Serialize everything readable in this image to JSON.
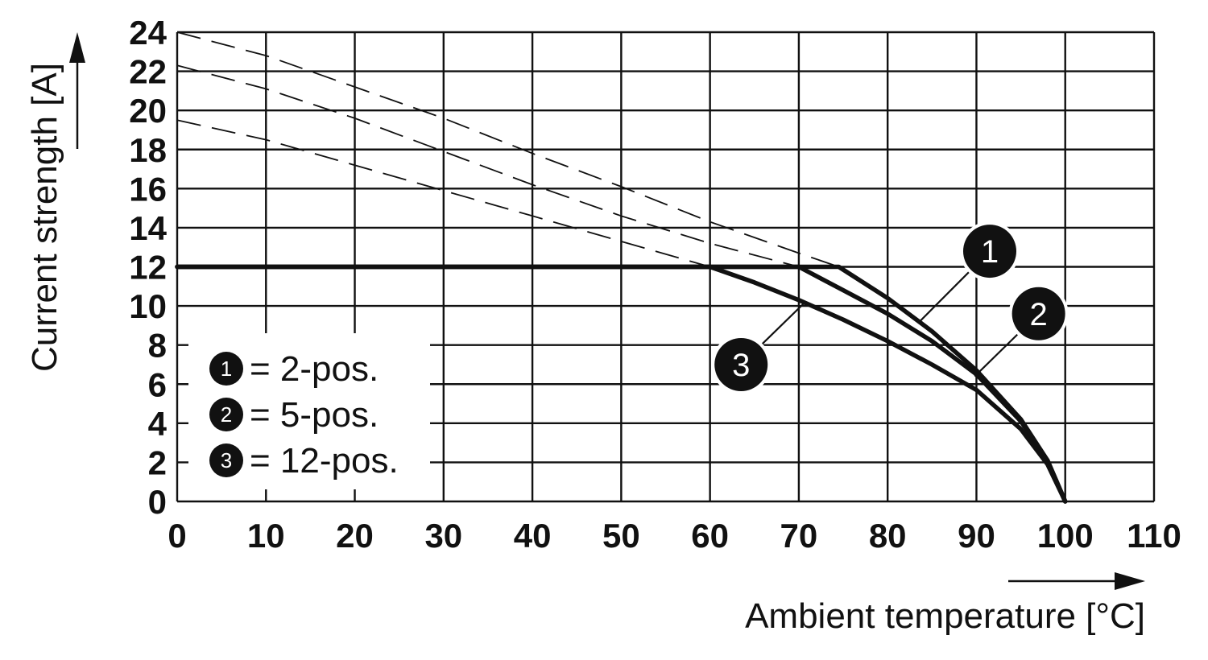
{
  "chart_data": {
    "type": "line",
    "xlabel": "Ambient temperature [°C]",
    "ylabel": "Current strength [A]",
    "xlim": [
      0,
      110
    ],
    "ylim": [
      0,
      24
    ],
    "x_ticks": [
      "0",
      "10",
      "20",
      "30",
      "40",
      "50",
      "60",
      "70",
      "80",
      "90",
      "100",
      "110"
    ],
    "y_ticks": [
      "0",
      "2",
      "4",
      "6",
      "8",
      "10",
      "12",
      "14",
      "16",
      "18",
      "20",
      "22",
      "24"
    ],
    "grid": true,
    "legend_position": "bottom-left",
    "legend": [
      {
        "marker": "1",
        "text": "= 2-pos."
      },
      {
        "marker": "2",
        "text": "= 5-pos."
      },
      {
        "marker": "3",
        "text": "= 12-pos."
      }
    ],
    "limit_current": 12,
    "series": [
      {
        "marker": "1",
        "solid": [
          [
            0,
            12
          ],
          [
            74.5,
            12
          ],
          [
            80,
            10.4
          ],
          [
            85,
            8.7
          ],
          [
            90,
            6.7
          ],
          [
            95,
            4.2
          ],
          [
            98,
            2.1
          ],
          [
            100,
            0
          ]
        ],
        "dashed": [
          [
            0,
            24
          ],
          [
            10,
            22.8
          ],
          [
            20,
            21.2
          ],
          [
            30,
            19.6
          ],
          [
            40,
            17.8
          ],
          [
            50,
            16.1
          ],
          [
            60,
            14.3
          ],
          [
            70,
            12.7
          ],
          [
            74.5,
            12
          ]
        ]
      },
      {
        "marker": "2",
        "solid": [
          [
            0,
            12
          ],
          [
            70,
            12
          ],
          [
            75,
            10.8
          ],
          [
            80,
            9.6
          ],
          [
            85,
            8.2
          ],
          [
            90,
            6.5
          ],
          [
            95,
            4.1
          ],
          [
            98,
            2.1
          ],
          [
            100,
            0
          ]
        ],
        "dashed": [
          [
            0,
            22.3
          ],
          [
            10,
            21.1
          ],
          [
            20,
            19.6
          ],
          [
            30,
            17.9
          ],
          [
            40,
            16.2
          ],
          [
            50,
            14.6
          ],
          [
            60,
            13.2
          ],
          [
            70,
            12
          ]
        ]
      },
      {
        "marker": "3",
        "solid": [
          [
            0,
            12
          ],
          [
            60,
            12
          ],
          [
            65,
            11.2
          ],
          [
            70,
            10.3
          ],
          [
            75,
            9.3
          ],
          [
            80,
            8.2
          ],
          [
            85,
            7.0
          ],
          [
            90,
            5.7
          ],
          [
            95,
            3.7
          ],
          [
            98,
            1.9
          ],
          [
            100,
            0
          ]
        ],
        "dashed": [
          [
            0,
            19.5
          ],
          [
            10,
            18.5
          ],
          [
            20,
            17.2
          ],
          [
            30,
            15.9
          ],
          [
            40,
            14.6
          ],
          [
            50,
            13.3
          ],
          [
            60,
            12
          ]
        ]
      }
    ],
    "callouts": [
      {
        "marker": "1",
        "x": 91.5,
        "y": 12.8,
        "point": [
          83.6,
          9.2
        ]
      },
      {
        "marker": "2",
        "x": 97,
        "y": 9.6,
        "point": [
          89.8,
          6.4
        ]
      },
      {
        "marker": "3",
        "x": 63.5,
        "y": 7.0,
        "point": [
          70.5,
          10.1
        ]
      }
    ]
  }
}
